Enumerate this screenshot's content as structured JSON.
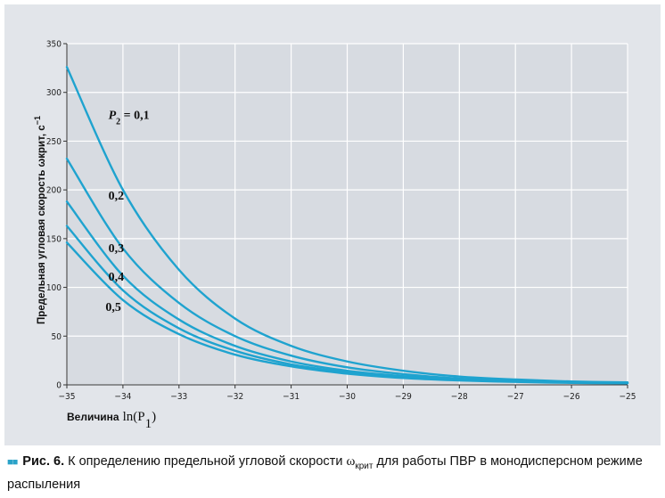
{
  "chart_data": {
    "type": "line",
    "xlabel_word": "Величина",
    "xlabel_expr": "ln(P",
    "xlabel_sub": "1",
    "xlabel_close": ")",
    "ylabel": "Предельная угловая скорость ωкрит, с",
    "ylabel_sup": "−1",
    "xlim": [
      -35,
      -25
    ],
    "ylim": [
      0,
      350
    ],
    "x_ticks": [
      -35,
      -34,
      -33,
      -32,
      -31,
      -30,
      -29,
      -28,
      -27,
      -26,
      -25
    ],
    "y_ticks": [
      0,
      50,
      100,
      150,
      200,
      250,
      300,
      350
    ],
    "x_tick_labels": [
      "−35",
      "−34",
      "−33",
      "−32",
      "−31",
      "−30",
      "−29",
      "−28",
      "−27",
      "−26",
      "−25"
    ],
    "y_tick_labels": [
      "0",
      "50",
      "100",
      "150",
      "200",
      "250",
      "300",
      "350"
    ],
    "grid": true,
    "line_color": "#1fa3cf",
    "series": [
      {
        "name": "0,1",
        "x": [
          -35,
          -34,
          -33,
          -32,
          -31,
          -30,
          -29,
          -28,
          -27,
          -26,
          -25
        ],
        "values": [
          326,
          200,
          118,
          68,
          40,
          24,
          14.5,
          8.5,
          5.5,
          3.5,
          2.5
        ]
      },
      {
        "name": "0,2",
        "x": [
          -35,
          -34,
          -33,
          -32,
          -31,
          -30,
          -29,
          -28,
          -27,
          -26,
          -25
        ],
        "values": [
          232,
          140,
          84,
          50,
          30,
          18,
          11,
          6.5,
          4.5,
          3,
          2
        ]
      },
      {
        "name": "0,3",
        "x": [
          -35,
          -34,
          -33,
          -32,
          -31,
          -30,
          -29,
          -28,
          -27,
          -26,
          -25
        ],
        "values": [
          188,
          112,
          67,
          40,
          24,
          14.5,
          9,
          5.5,
          4,
          2.5,
          2
        ]
      },
      {
        "name": "0,4",
        "x": [
          -35,
          -34,
          -33,
          -32,
          -31,
          -30,
          -29,
          -28,
          -27,
          -26,
          -25
        ],
        "values": [
          163,
          97,
          58,
          35,
          21,
          13,
          8,
          5,
          3.5,
          2.5,
          2
        ]
      },
      {
        "name": "0,5",
        "x": [
          -35,
          -34,
          -33,
          -32,
          -31,
          -30,
          -29,
          -28,
          -27,
          -26,
          -25
        ],
        "values": [
          146,
          87,
          52,
          31,
          19,
          11.5,
          7,
          4.5,
          3,
          2,
          1.5
        ]
      }
    ],
    "annotations": [
      {
        "label": "P",
        "sub": "2",
        "text": " = 0,1",
        "x": -34.8,
        "y": 273
      },
      {
        "text": "0,2",
        "x": -34.8,
        "y": 190
      },
      {
        "text": "0,3",
        "x": -34.8,
        "y": 136
      },
      {
        "text": "0,4",
        "x": -34.8,
        "y": 107
      },
      {
        "text": "0,5",
        "x": -34.85,
        "y": 76
      }
    ]
  },
  "caption": {
    "fig_label": "Рис. 6.",
    "text_before": " К определению предельной угловой скорости ",
    "omega": "ω",
    "omega_sub": "крит",
    "text_after": " для работы ПВР в монодисперсном режиме распыления"
  }
}
